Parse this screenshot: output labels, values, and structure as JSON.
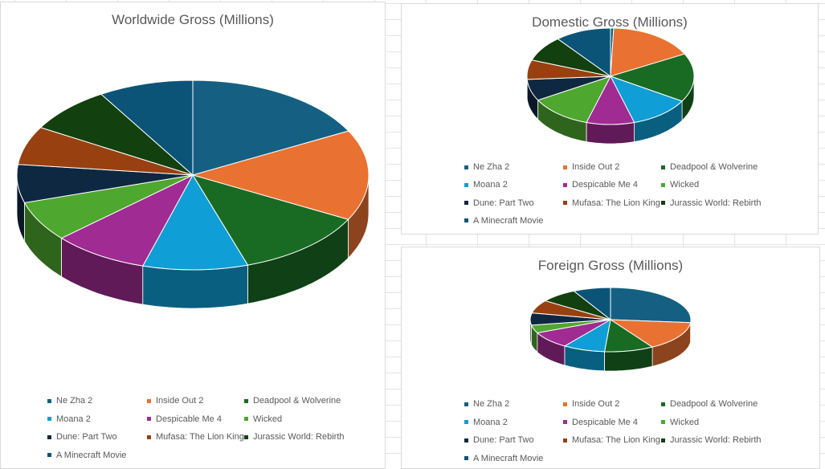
{
  "colors": [
    "#156082",
    "#E97132",
    "#196B24",
    "#0F9ED5",
    "#A02B93",
    "#4EA72E",
    "#0E2841",
    "#984010",
    "#12400F",
    "#0B5478"
  ],
  "legend_labels": [
    "Ne Zha 2",
    "Inside Out 2",
    "Deadpool & Wolverine",
    "Moana 2",
    "Despicable Me 4",
    "Wicked",
    "Dune: Part Two",
    "Mufasa: The Lion King",
    "Jurassic World: Rebirth",
    "A Minecraft Movie"
  ],
  "chart_data": [
    {
      "type": "pie",
      "title": "Worldwide Gross (Millions)",
      "categories": [
        "Ne Zha 2",
        "Inside Out 2",
        "Deadpool & Wolverine",
        "Moana 2",
        "Despicable Me 4",
        "Wicked",
        "Dune: Part Two",
        "Mufasa: The Lion King",
        "Jurassic World: Rebirth",
        "A Minecraft Movie"
      ],
      "values": [
        1900,
        1699,
        1338,
        1059,
        969,
        756,
        715,
        722,
        869,
        958
      ],
      "style": "3d",
      "legend": "bottom"
    },
    {
      "type": "pie",
      "title": "Domestic Gross (Millions)",
      "categories": [
        "Ne Zha 2",
        "Inside Out 2",
        "Deadpool & Wolverine",
        "Moana 2",
        "Despicable Me 4",
        "Wicked",
        "Dune: Part Two",
        "Mufasa: The Lion King",
        "Jurassic World: Rebirth",
        "A Minecraft Movie"
      ],
      "values": [
        24,
        653,
        637,
        460,
        361,
        473,
        282,
        254,
        339,
        424
      ],
      "style": "3d",
      "legend": "bottom"
    },
    {
      "type": "pie",
      "title": "Foreign Gross (Millions)",
      "categories": [
        "Ne Zha 2",
        "Inside Out 2",
        "Deadpool & Wolverine",
        "Moana 2",
        "Despicable Me 4",
        "Wicked",
        "Dune: Part Two",
        "Mufasa: The Lion King",
        "Jurassic World: Rebirth",
        "A Minecraft Movie"
      ],
      "values": [
        1876,
        1046,
        701,
        599,
        608,
        283,
        433,
        468,
        530,
        534
      ],
      "style": "3d",
      "legend": "bottom"
    }
  ]
}
